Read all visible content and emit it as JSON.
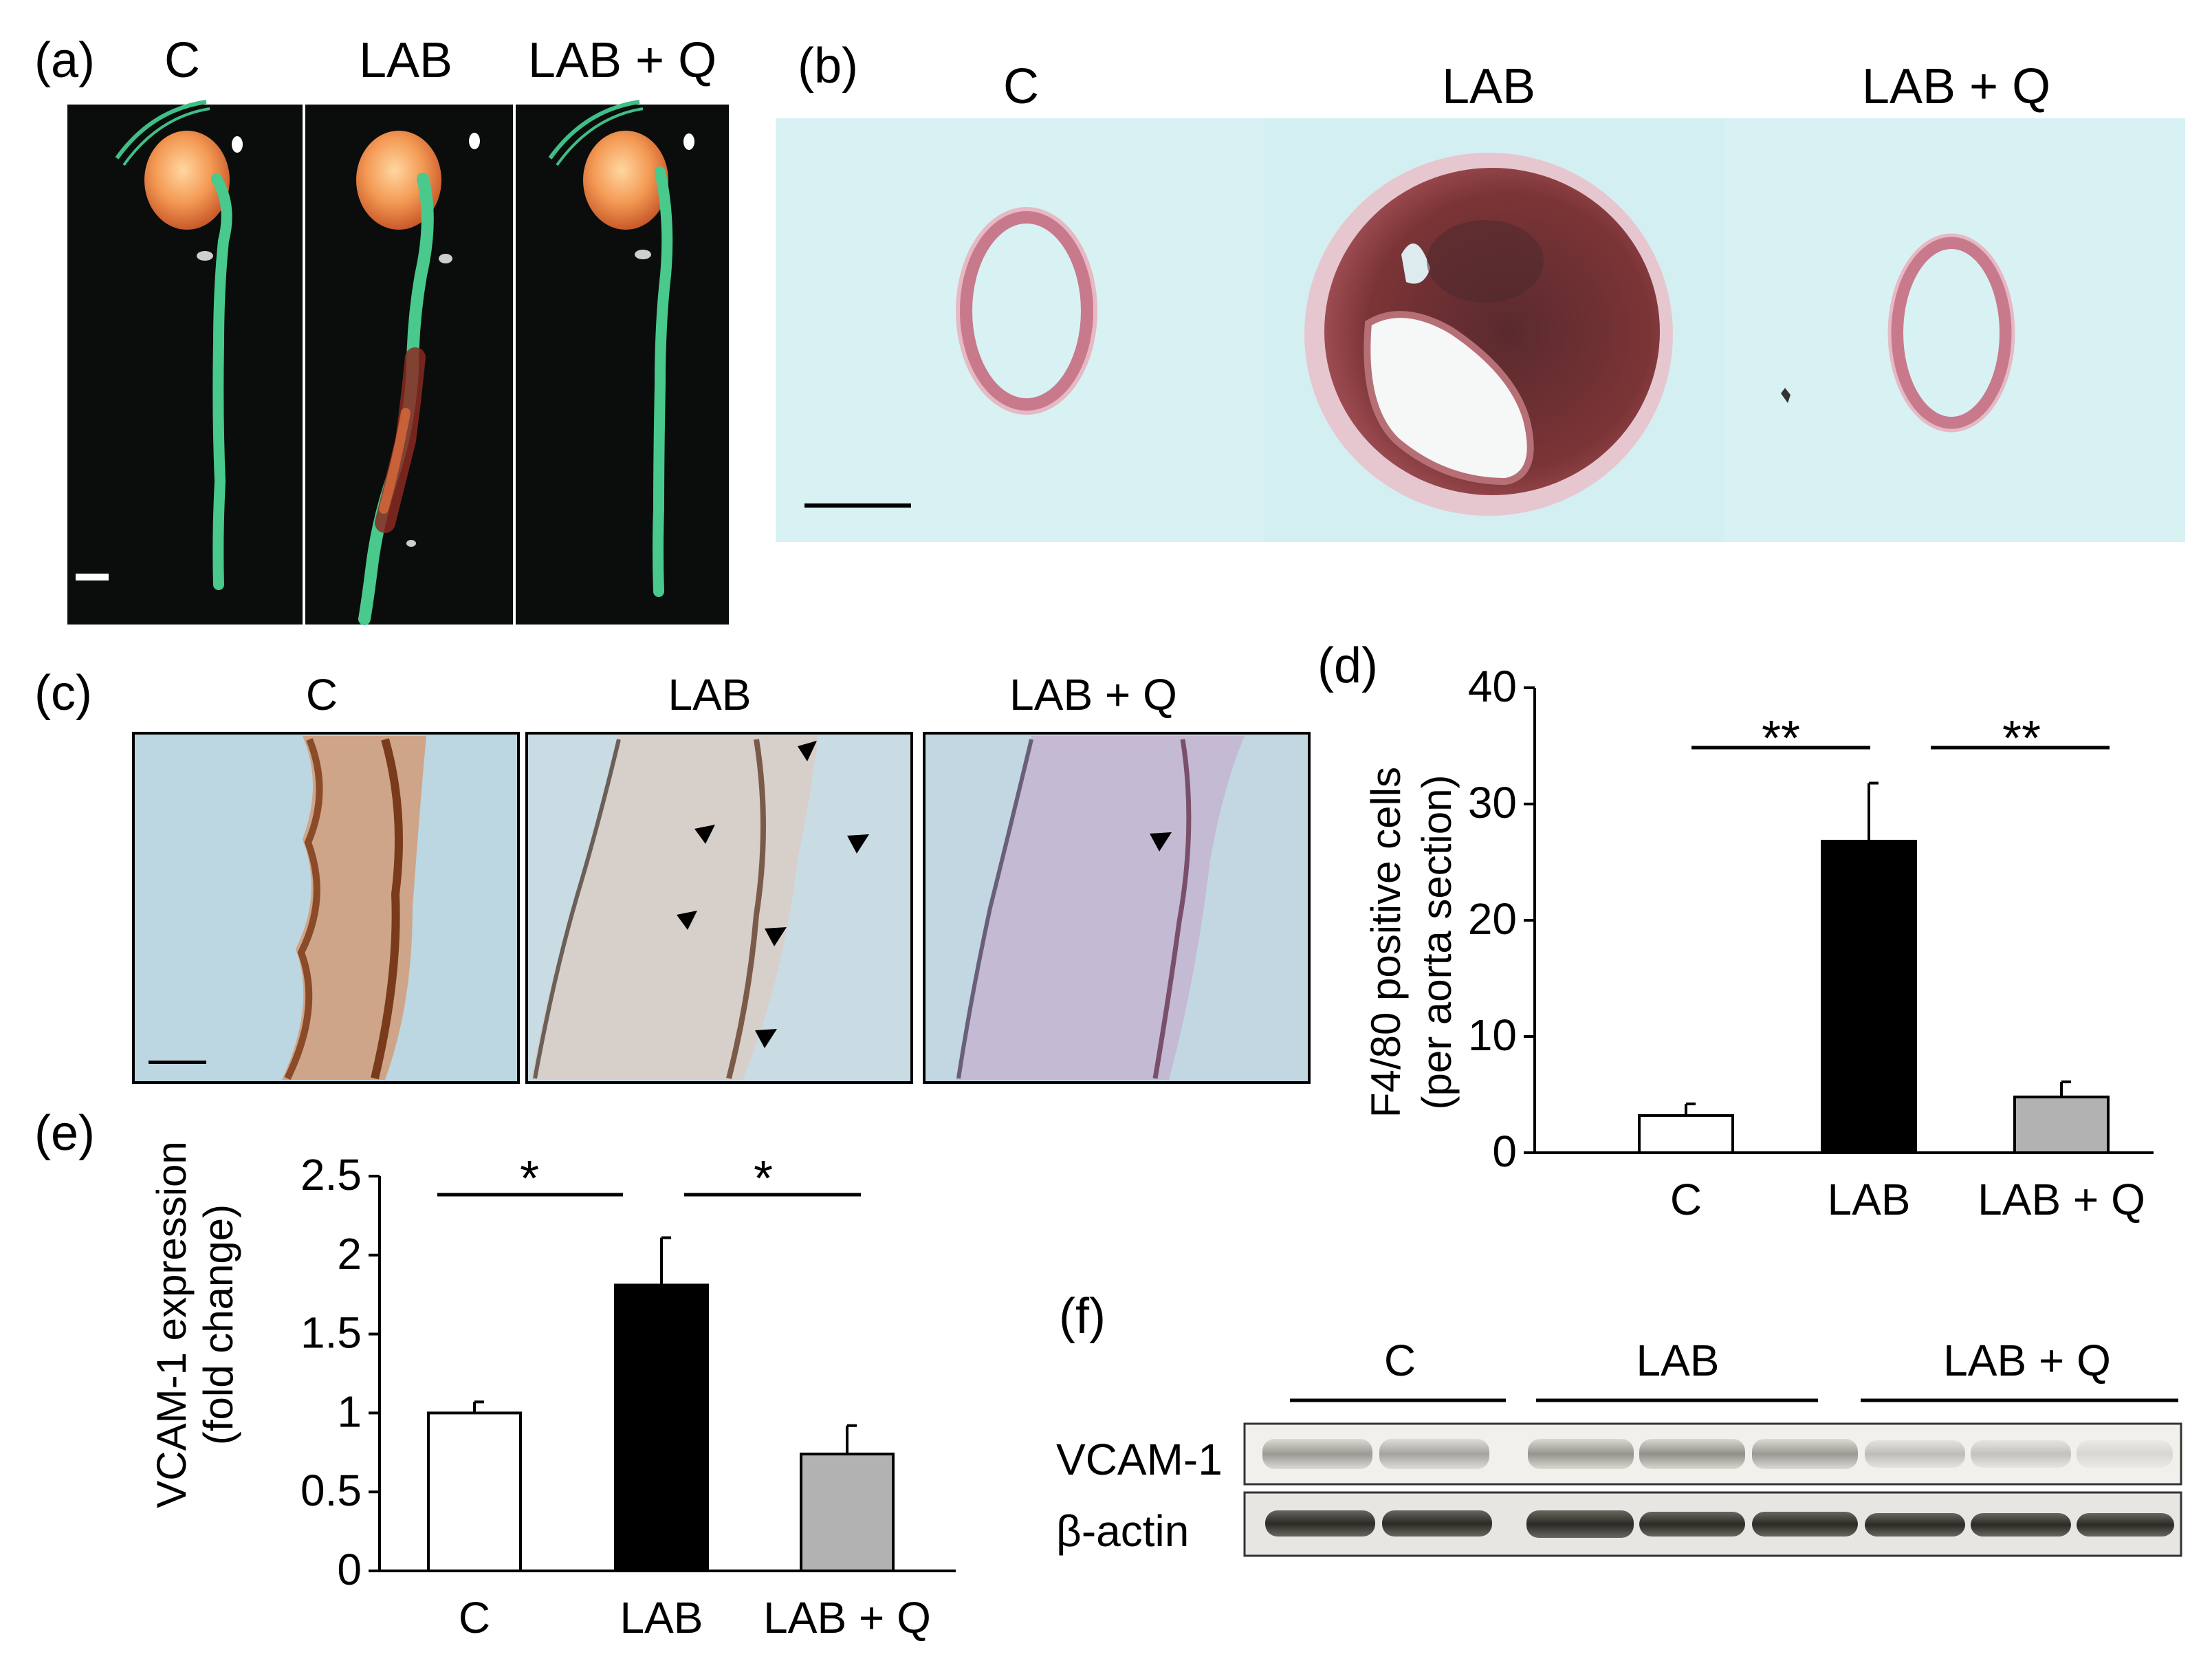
{
  "panels": {
    "a": {
      "label": "(a)",
      "groups": [
        "C",
        "LAB",
        "LAB + Q"
      ]
    },
    "b": {
      "label": "(b)",
      "groups": [
        "C",
        "LAB",
        "LAB + Q"
      ]
    },
    "c": {
      "label": "(c)",
      "groups": [
        "C",
        "LAB",
        "LAB + Q"
      ]
    },
    "d": {
      "label": "(d)",
      "significance": [
        "**",
        "**"
      ]
    },
    "e": {
      "label": "(e)",
      "significance": [
        "*",
        "*"
      ]
    },
    "f": {
      "label": "(f)",
      "groups": [
        "C",
        "LAB",
        "LAB + Q"
      ],
      "rows": [
        "VCAM-1",
        "β-actin"
      ]
    }
  },
  "colors": {
    "dark_background": "#0b0d0c",
    "histology_background": "#d8f2f4",
    "ihc_background": "#bcd7e2",
    "control_bar": "#ffffff",
    "lab_bar": "#000000",
    "lab_q_bar": "#b2b2b2"
  },
  "chart_data": [
    {
      "id": "d",
      "type": "bar",
      "categories": [
        "C",
        "LAB",
        "LAB + Q"
      ],
      "values": [
        3.2,
        26.8,
        4.8
      ],
      "errors": [
        1.0,
        5.0,
        1.3
      ],
      "ylabel_line1": "F4/80 positive cells",
      "ylabel_line2": "(per aorta section)",
      "ylim": [
        0,
        40
      ],
      "yticks": [
        0,
        10,
        20,
        30,
        40
      ],
      "grid": false
    },
    {
      "id": "e",
      "type": "bar",
      "categories": [
        "C",
        "LAB",
        "LAB + Q"
      ],
      "values": [
        1.0,
        1.81,
        0.74
      ],
      "errors": [
        0.07,
        0.3,
        0.18
      ],
      "ylabel_line1": "VCAM-1 expression",
      "ylabel_line2": "(fold change)",
      "ylim": [
        0,
        2.5
      ],
      "yticks": [
        0,
        0.5,
        1,
        1.5,
        2,
        2.5
      ],
      "yticklabels": [
        "0",
        "0.5",
        "1",
        "1.5",
        "2",
        "2.5"
      ],
      "grid": false
    }
  ]
}
